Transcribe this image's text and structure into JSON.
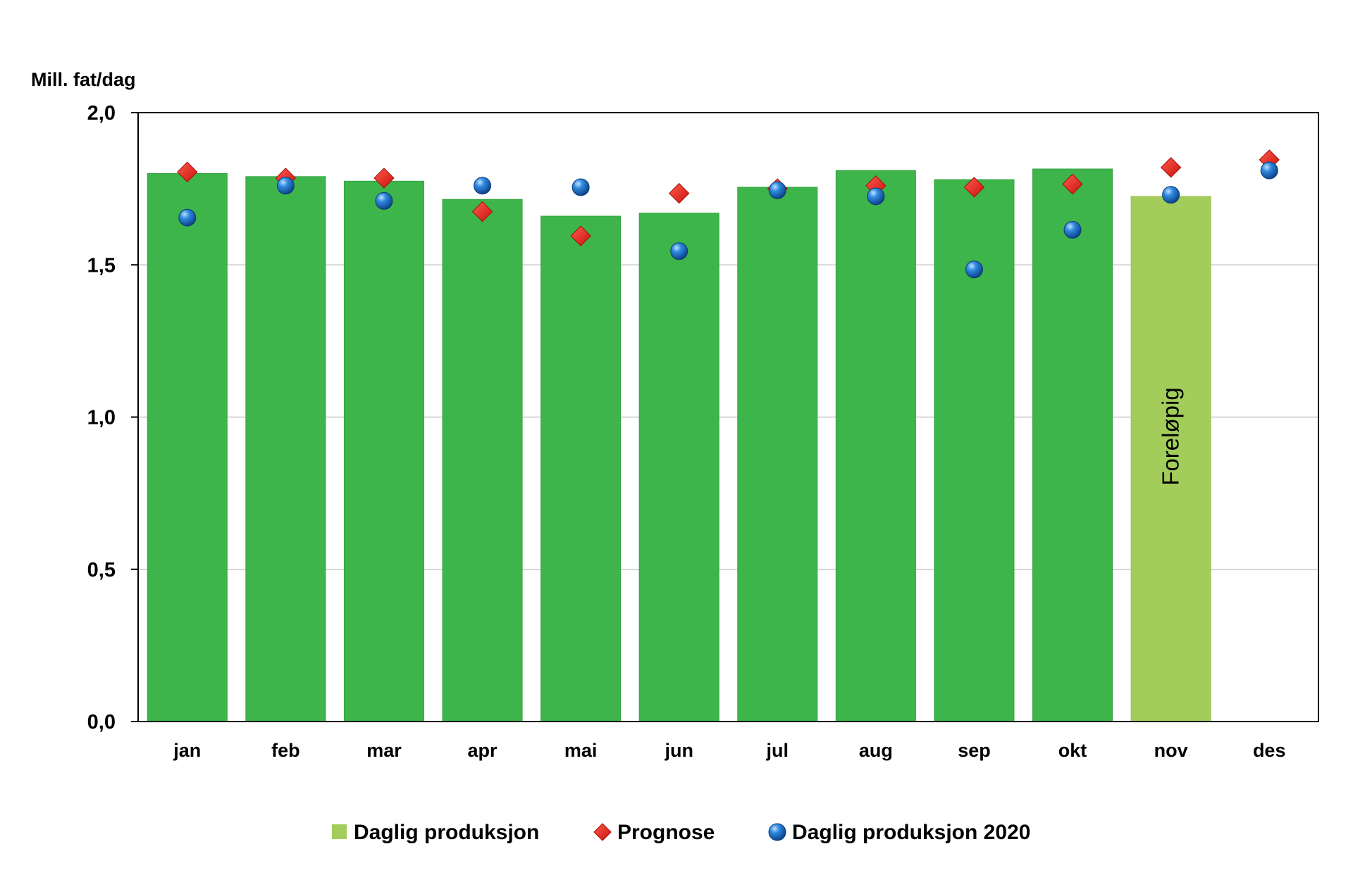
{
  "chart_data": {
    "type": "bar",
    "ylabel": "Mill. fat/dag",
    "ylim": [
      0,
      2.0
    ],
    "yticks": [
      "0,0",
      "0,5",
      "1,0",
      "1,5",
      "2,0"
    ],
    "ytick_values": [
      0,
      0.5,
      1.0,
      1.5,
      2.0
    ],
    "grid": true,
    "legend_position": "bottom",
    "categories": [
      "jan",
      "feb",
      "mar",
      "apr",
      "mai",
      "jun",
      "jul",
      "aug",
      "sep",
      "okt",
      "nov",
      "des"
    ],
    "series": [
      {
        "name": "Daglig produksjon",
        "kind": "bar",
        "color": "#3db54a",
        "preliminary_color": "#a3cd5b",
        "values": [
          1.8,
          1.79,
          1.775,
          1.715,
          1.66,
          1.67,
          1.755,
          1.81,
          1.78,
          1.815,
          1.725,
          null
        ],
        "preliminary": [
          false,
          false,
          false,
          false,
          false,
          false,
          false,
          false,
          false,
          false,
          true,
          false
        ]
      },
      {
        "name": "Prognose",
        "kind": "marker",
        "marker": "diamond",
        "color": "#e8241b",
        "values": [
          1.805,
          1.785,
          1.785,
          1.675,
          1.595,
          1.735,
          1.75,
          1.76,
          1.755,
          1.765,
          1.82,
          1.845
        ]
      },
      {
        "name": "Daglig produksjon 2020",
        "kind": "marker",
        "marker": "circle",
        "color": "#1f6fc0",
        "values": [
          1.655,
          1.76,
          1.71,
          1.76,
          1.755,
          1.545,
          1.745,
          1.725,
          1.485,
          1.615,
          1.73,
          1.81
        ]
      }
    ],
    "annotation": {
      "text": "Foreløpig",
      "category": "nov"
    }
  }
}
